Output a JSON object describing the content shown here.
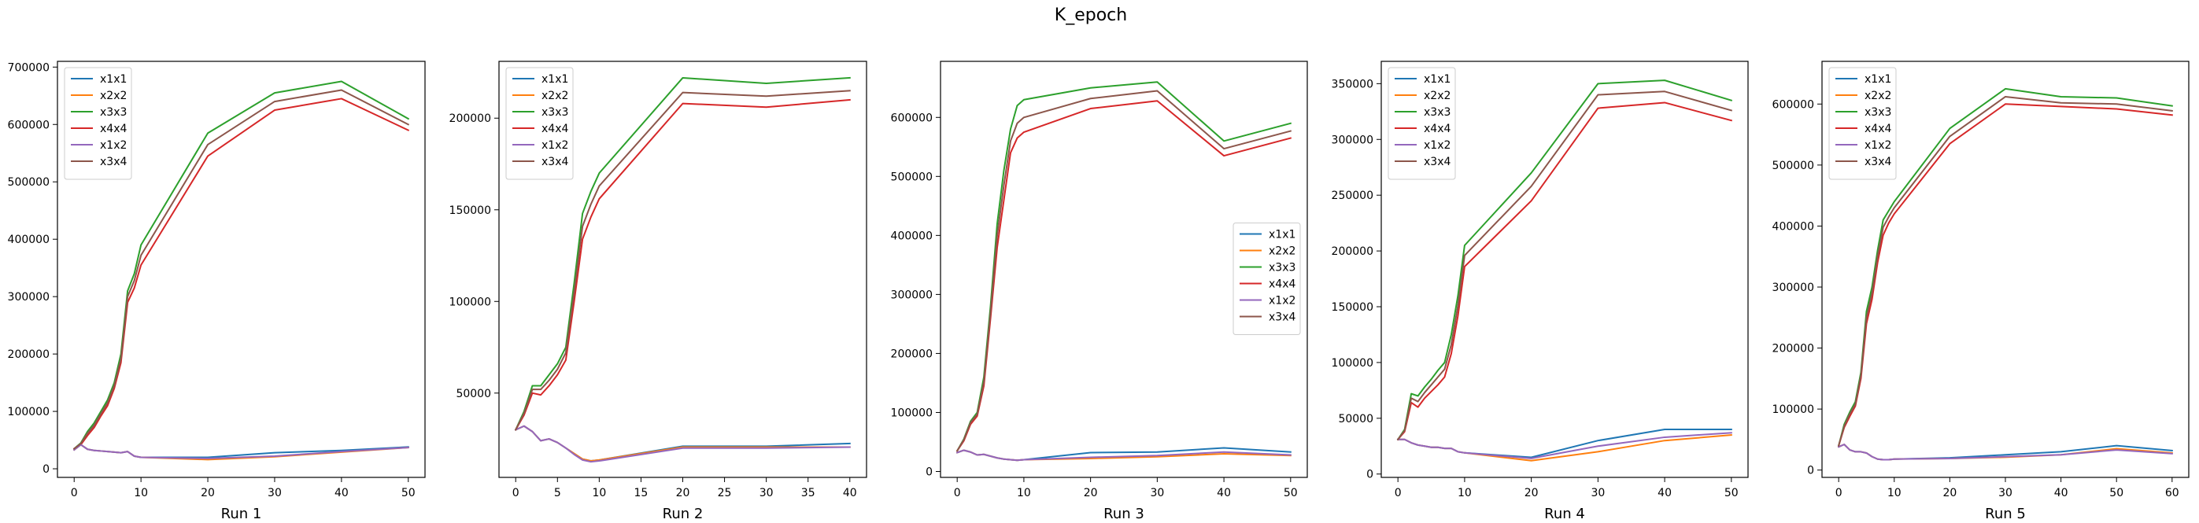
{
  "suptitle": "K_epoch",
  "colors": {
    "x1x1": "#1f77b4",
    "x2x2": "#ff7f0e",
    "x3x3": "#2ca02c",
    "x4x4": "#d62728",
    "x1x2": "#9467bd",
    "x3x4": "#8c564b"
  },
  "chart_data": [
    {
      "type": "line",
      "title": "Run 1",
      "xlabel": "Run 1",
      "ylabel": "",
      "xlim": [
        -2.5,
        52.5
      ],
      "ylim": [
        -15000,
        710000
      ],
      "xticks": [
        0,
        10,
        20,
        30,
        40,
        50
      ],
      "yticks": [
        0,
        100000,
        200000,
        300000,
        400000,
        500000,
        600000,
        700000
      ],
      "legend_position": "upper-left",
      "x": [
        0,
        1,
        2,
        3,
        4,
        5,
        6,
        7,
        8,
        9,
        10,
        20,
        30,
        40,
        50
      ],
      "series": [
        {
          "name": "x1x1",
          "values": [
            33000,
            42000,
            34000,
            32000,
            31000,
            30000,
            29000,
            28000,
            30000,
            22000,
            20000,
            20000,
            28000,
            32000,
            38000
          ]
        },
        {
          "name": "x2x2",
          "values": [
            33000,
            42000,
            34000,
            32000,
            31000,
            30000,
            29000,
            28000,
            30000,
            22000,
            20000,
            16000,
            21000,
            29000,
            37000
          ]
        },
        {
          "name": "x3x3",
          "values": [
            35000,
            45000,
            65000,
            80000,
            100000,
            120000,
            150000,
            200000,
            310000,
            340000,
            390000,
            585000,
            655000,
            675000,
            610000
          ]
        },
        {
          "name": "x4x4",
          "values": [
            35000,
            42000,
            58000,
            72000,
            92000,
            110000,
            140000,
            185000,
            290000,
            315000,
            355000,
            545000,
            625000,
            645000,
            590000
          ]
        },
        {
          "name": "x1x2",
          "values": [
            33000,
            42000,
            34000,
            32000,
            31000,
            30000,
            29000,
            28000,
            30000,
            22000,
            20000,
            18000,
            22000,
            30000,
            37000
          ]
        },
        {
          "name": "x3x4",
          "values": [
            35000,
            44000,
            62000,
            76000,
            96000,
            115000,
            145000,
            192000,
            300000,
            328000,
            372000,
            565000,
            640000,
            660000,
            600000
          ]
        }
      ]
    },
    {
      "type": "line",
      "title": "Run 2",
      "xlabel": "Run 2",
      "ylabel": "",
      "xlim": [
        -2,
        42
      ],
      "ylim": [
        4000,
        231000
      ],
      "xticks": [
        0,
        5,
        10,
        15,
        20,
        25,
        30,
        35,
        40
      ],
      "yticks": [
        50000,
        100000,
        150000,
        200000
      ],
      "legend_position": "upper-left",
      "x": [
        0,
        1,
        2,
        3,
        4,
        5,
        6,
        7,
        8,
        9,
        10,
        20,
        30,
        40
      ],
      "series": [
        {
          "name": "x1x1",
          "values": [
            30000,
            32000,
            29000,
            24000,
            25000,
            23000,
            20000,
            17000,
            14000,
            13000,
            13500,
            21000,
            21000,
            22500
          ]
        },
        {
          "name": "x2x2",
          "values": [
            30000,
            32000,
            29000,
            24000,
            25000,
            23000,
            20000,
            17000,
            14000,
            13000,
            13500,
            20500,
            20500,
            20500
          ]
        },
        {
          "name": "x3x3",
          "values": [
            30000,
            40000,
            54000,
            54000,
            60000,
            66000,
            75000,
            110000,
            148000,
            160000,
            170000,
            222000,
            219000,
            222000
          ]
        },
        {
          "name": "x4x4",
          "values": [
            30000,
            38000,
            50000,
            49000,
            54000,
            60000,
            68000,
            100000,
            134000,
            146000,
            156000,
            208000,
            206000,
            210000
          ]
        },
        {
          "name": "x1x2",
          "values": [
            30000,
            32000,
            29000,
            24000,
            25000,
            23000,
            20000,
            16500,
            13500,
            12500,
            13000,
            20000,
            20000,
            20500
          ]
        },
        {
          "name": "x3x4",
          "values": [
            30000,
            39000,
            52000,
            52000,
            57000,
            63000,
            72000,
            105000,
            141000,
            153000,
            163000,
            214000,
            212000,
            215000
          ]
        }
      ]
    },
    {
      "type": "line",
      "title": "Run 3",
      "xlabel": "Run 3",
      "ylabel": "",
      "xlim": [
        -2.5,
        52.5
      ],
      "ylim": [
        -10000,
        695000
      ],
      "xticks": [
        0,
        10,
        20,
        30,
        40,
        50
      ],
      "yticks": [
        0,
        100000,
        200000,
        300000,
        400000,
        500000,
        600000
      ],
      "legend_position": "center-right",
      "x": [
        0,
        1,
        2,
        3,
        4,
        5,
        6,
        7,
        8,
        9,
        10,
        20,
        30,
        40,
        50
      ],
      "series": [
        {
          "name": "x1x1",
          "values": [
            32000,
            36000,
            33000,
            28000,
            29000,
            26000,
            23000,
            21000,
            20000,
            19000,
            20000,
            32000,
            33000,
            40000,
            33000
          ]
        },
        {
          "name": "x2x2",
          "values": [
            32000,
            36000,
            33000,
            28000,
            29000,
            26000,
            23000,
            21000,
            20000,
            19000,
            20000,
            22000,
            25000,
            30000,
            27000
          ]
        },
        {
          "name": "x3x3",
          "values": [
            35000,
            55000,
            85000,
            100000,
            160000,
            280000,
            420000,
            510000,
            580000,
            620000,
            630000,
            650000,
            660000,
            560000,
            590000
          ]
        },
        {
          "name": "x4x4",
          "values": [
            35000,
            52000,
            80000,
            94000,
            145000,
            260000,
            380000,
            460000,
            540000,
            565000,
            575000,
            615000,
            628000,
            535000,
            565000
          ]
        },
        {
          "name": "x1x2",
          "values": [
            32000,
            36000,
            33000,
            28000,
            29000,
            26000,
            23000,
            21000,
            20000,
            19000,
            20000,
            24000,
            27000,
            33000,
            28000
          ]
        },
        {
          "name": "x3x4",
          "values": [
            35000,
            54000,
            83000,
            97000,
            152000,
            270000,
            400000,
            485000,
            560000,
            590000,
            600000,
            632000,
            645000,
            547000,
            577000
          ]
        }
      ]
    },
    {
      "type": "line",
      "title": "Run 4",
      "xlabel": "Run 4",
      "ylabel": "",
      "xlim": [
        -2.5,
        52.5
      ],
      "ylim": [
        -3000,
        370000
      ],
      "xticks": [
        0,
        10,
        20,
        30,
        40,
        50
      ],
      "yticks": [
        0,
        50000,
        100000,
        150000,
        200000,
        250000,
        300000,
        350000
      ],
      "legend_position": "upper-left",
      "x": [
        0,
        1,
        2,
        3,
        4,
        5,
        6,
        7,
        8,
        9,
        10,
        20,
        30,
        40,
        50
      ],
      "series": [
        {
          "name": "x1x1",
          "values": [
            31000,
            31000,
            28000,
            26000,
            25000,
            24000,
            24000,
            23000,
            23000,
            20000,
            19000,
            15000,
            30000,
            40000,
            40000
          ]
        },
        {
          "name": "x2x2",
          "values": [
            31000,
            31000,
            28000,
            26000,
            25000,
            24000,
            24000,
            23000,
            23000,
            20000,
            19000,
            12000,
            20000,
            30000,
            35000
          ]
        },
        {
          "name": "x3x3",
          "values": [
            31000,
            40000,
            72000,
            70000,
            78000,
            85000,
            93000,
            100000,
            125000,
            160000,
            205000,
            270000,
            350000,
            353000,
            335000
          ]
        },
        {
          "name": "x4x4",
          "values": [
            31000,
            38000,
            64000,
            60000,
            68000,
            74000,
            80000,
            87000,
            108000,
            142000,
            186000,
            245000,
            328000,
            333000,
            317000
          ]
        },
        {
          "name": "x1x2",
          "values": [
            31000,
            31000,
            28000,
            26000,
            25000,
            24000,
            24000,
            23000,
            23000,
            20000,
            19000,
            14000,
            25000,
            33000,
            37000
          ]
        },
        {
          "name": "x3x4",
          "values": [
            31000,
            39000,
            68000,
            65000,
            73000,
            80000,
            87000,
            94000,
            116000,
            151000,
            196000,
            258000,
            340000,
            343000,
            326000
          ]
        }
      ]
    },
    {
      "type": "line",
      "title": "Run 5",
      "xlabel": "Run 5",
      "ylabel": "",
      "xlim": [
        -3,
        63
      ],
      "ylim": [
        -12000,
        670000
      ],
      "xticks": [
        0,
        10,
        20,
        30,
        40,
        50,
        60
      ],
      "yticks": [
        0,
        100000,
        200000,
        300000,
        400000,
        500000,
        600000
      ],
      "legend_position": "upper-left",
      "x": [
        0,
        1,
        2,
        3,
        4,
        5,
        6,
        7,
        8,
        9,
        10,
        20,
        30,
        40,
        50,
        60
      ],
      "series": [
        {
          "name": "x1x1",
          "values": [
            38000,
            42000,
            33000,
            30000,
            30000,
            28000,
            22000,
            18000,
            17000,
            17000,
            18000,
            20000,
            25000,
            30000,
            40000,
            32000
          ]
        },
        {
          "name": "x2x2",
          "values": [
            38000,
            42000,
            33000,
            30000,
            30000,
            28000,
            22000,
            18000,
            17000,
            17000,
            18000,
            19000,
            21000,
            25000,
            35000,
            28000
          ]
        },
        {
          "name": "x3x3",
          "values": [
            40000,
            75000,
            95000,
            112000,
            160000,
            260000,
            300000,
            360000,
            410000,
            425000,
            440000,
            560000,
            625000,
            612000,
            610000,
            597000
          ]
        },
        {
          "name": "x4x4",
          "values": [
            40000,
            70000,
            88000,
            105000,
            150000,
            240000,
            280000,
            340000,
            385000,
            405000,
            420000,
            535000,
            600000,
            596000,
            592000,
            582000
          ]
        },
        {
          "name": "x1x2",
          "values": [
            38000,
            42000,
            33000,
            30000,
            30000,
            28000,
            22000,
            18000,
            17000,
            17000,
            18000,
            19000,
            22000,
            25000,
            33000,
            27000
          ]
        },
        {
          "name": "x3x4",
          "values": [
            40000,
            72000,
            92000,
            108000,
            155000,
            250000,
            290000,
            350000,
            398000,
            415000,
            430000,
            547000,
            612000,
            602000,
            600000,
            589000
          ]
        }
      ]
    }
  ]
}
